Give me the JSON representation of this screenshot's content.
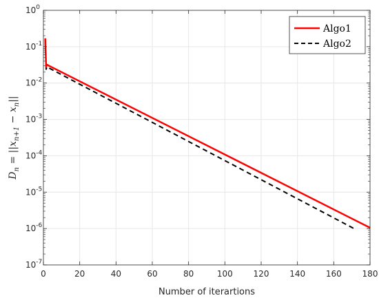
{
  "chart_data": {
    "type": "line",
    "xlabel": "Number of iterartions",
    "ylabel": "D_n = ||x_{n+1} - x_n||",
    "ylabel_parts": {
      "lhs": "D",
      "lhs_sub": "n",
      "eq": " = ",
      "open": "||",
      "x1": "x",
      "x1_sub": "n+1",
      "minus": " − ",
      "x2": "x",
      "x2_sub": "n",
      "close": "||"
    },
    "xlim": [
      0,
      180
    ],
    "ylim": [
      1e-07,
      1
    ],
    "yscale": "log",
    "xticks": [
      0,
      20,
      40,
      60,
      80,
      100,
      120,
      140,
      160,
      180
    ],
    "yticks": [
      {
        "value": 1,
        "base": "10",
        "exp": "0"
      },
      {
        "value": 0.1,
        "base": "10",
        "exp": "-1"
      },
      {
        "value": 0.01,
        "base": "10",
        "exp": "-2"
      },
      {
        "value": 0.001,
        "base": "10",
        "exp": "-3"
      },
      {
        "value": 0.0001,
        "base": "10",
        "exp": "-4"
      },
      {
        "value": 1e-05,
        "base": "10",
        "exp": "-5"
      },
      {
        "value": 1e-06,
        "base": "10",
        "exp": "-6"
      },
      {
        "value": 1e-07,
        "base": "10",
        "exp": "-7"
      }
    ],
    "grid": true,
    "legend_position": "top-right",
    "series": [
      {
        "name": "Algo1",
        "color": "#ff0000",
        "style": "solid",
        "x": [
          1,
          1.5,
          2,
          3,
          180
        ],
        "y": [
          0.17,
          0.028,
          0.032,
          0.03,
          1.05e-06
        ]
      },
      {
        "name": "Algo2",
        "color": "#000000",
        "style": "dashed",
        "x": [
          1,
          1.5,
          2,
          3,
          172
        ],
        "y": [
          0.14,
          0.024,
          0.028,
          0.026,
          9.5e-07
        ]
      }
    ]
  }
}
